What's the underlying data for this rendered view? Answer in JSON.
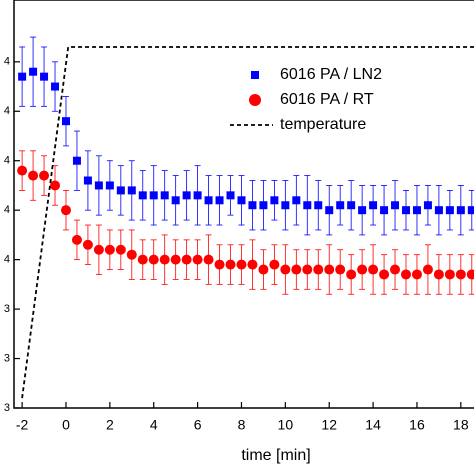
{
  "chart_data": {
    "type": "scatter",
    "xlabel": "time [min]",
    "xlim": [
      -2.37,
      18.6
    ],
    "ylim": [
      3.7,
      4.525
    ],
    "xticks": [
      -2,
      0,
      2,
      4,
      6,
      8,
      10,
      12,
      14,
      16,
      18
    ],
    "yticks": [
      {
        "value": 3.7,
        "label": "3"
      },
      {
        "value": 3.8,
        "label": "3"
      },
      {
        "value": 3.9,
        "label": "3"
      },
      {
        "value": 4.0,
        "label": "4"
      },
      {
        "value": 4.1,
        "label": "4"
      },
      {
        "value": 4.2,
        "label": "4"
      },
      {
        "value": 4.3,
        "label": "4"
      },
      {
        "value": 4.4,
        "label": "4"
      }
    ],
    "legend": "upper right",
    "series": [
      {
        "name": "6016 PA / LN2",
        "color": "#0000ff",
        "marker": "square",
        "x": [
          -2,
          -1.5,
          -1,
          -0.5,
          0,
          0.5,
          1,
          1.5,
          2,
          2.5,
          3,
          3.5,
          4,
          4.5,
          5,
          5.5,
          6,
          6.5,
          7,
          7.5,
          8,
          8.5,
          9,
          9.5,
          10,
          10.5,
          11,
          11.5,
          12,
          12.5,
          13,
          13.5,
          14,
          14.5,
          15,
          15.5,
          16,
          16.5,
          17,
          17.5,
          18,
          18.5
        ],
        "values": [
          4.37,
          4.38,
          4.37,
          4.35,
          4.28,
          4.2,
          4.16,
          4.15,
          4.15,
          4.14,
          4.14,
          4.13,
          4.13,
          4.13,
          4.12,
          4.13,
          4.13,
          4.12,
          4.12,
          4.13,
          4.12,
          4.11,
          4.11,
          4.12,
          4.11,
          4.12,
          4.11,
          4.11,
          4.1,
          4.11,
          4.11,
          4.1,
          4.11,
          4.1,
          4.11,
          4.1,
          4.1,
          4.11,
          4.1,
          4.1,
          4.1,
          4.1
        ],
        "errors": [
          0.06,
          0.07,
          0.06,
          0.05,
          0.05,
          0.06,
          0.06,
          0.06,
          0.05,
          0.05,
          0.06,
          0.05,
          0.06,
          0.05,
          0.05,
          0.05,
          0.06,
          0.05,
          0.05,
          0.04,
          0.05,
          0.05,
          0.05,
          0.04,
          0.05,
          0.05,
          0.06,
          0.05,
          0.05,
          0.04,
          0.05,
          0.05,
          0.04,
          0.05,
          0.05,
          0.04,
          0.05,
          0.04,
          0.05,
          0.04,
          0.05,
          0.04
        ]
      },
      {
        "name": "6016 PA / RT",
        "color": "#ff0000",
        "marker": "circle",
        "x": [
          -2,
          -1.5,
          -1,
          -0.5,
          0,
          0.5,
          1,
          1.5,
          2,
          2.5,
          3,
          3.5,
          4,
          4.5,
          5,
          5.5,
          6,
          6.5,
          7,
          7.5,
          8,
          8.5,
          9,
          9.5,
          10,
          10.5,
          11,
          11.5,
          12,
          12.5,
          13,
          13.5,
          14,
          14.5,
          15,
          15.5,
          16,
          16.5,
          17,
          17.5,
          18,
          18.5
        ],
        "values": [
          4.18,
          4.17,
          4.17,
          4.15,
          4.1,
          4.04,
          4.03,
          4.02,
          4.02,
          4.02,
          4.01,
          4.0,
          4.0,
          4.0,
          4.0,
          4.0,
          4.0,
          4.0,
          3.99,
          3.99,
          3.99,
          3.99,
          3.98,
          3.99,
          3.98,
          3.98,
          3.98,
          3.98,
          3.98,
          3.98,
          3.97,
          3.98,
          3.98,
          3.97,
          3.98,
          3.97,
          3.97,
          3.98,
          3.97,
          3.97,
          3.97,
          3.97
        ],
        "errors": [
          0.04,
          0.05,
          0.04,
          0.04,
          0.04,
          0.04,
          0.04,
          0.05,
          0.04,
          0.04,
          0.05,
          0.04,
          0.04,
          0.05,
          0.04,
          0.04,
          0.04,
          0.05,
          0.04,
          0.04,
          0.04,
          0.05,
          0.04,
          0.04,
          0.05,
          0.04,
          0.04,
          0.04,
          0.05,
          0.04,
          0.04,
          0.04,
          0.05,
          0.04,
          0.04,
          0.04,
          0.04,
          0.05,
          0.04,
          0.04,
          0.04,
          0.04
        ]
      },
      {
        "name": "temperature",
        "color": "#000000",
        "marker": "dashed-line",
        "x": [
          -2,
          0.1,
          18.6
        ],
        "values": [
          3.72,
          4.43,
          4.43
        ]
      }
    ]
  }
}
